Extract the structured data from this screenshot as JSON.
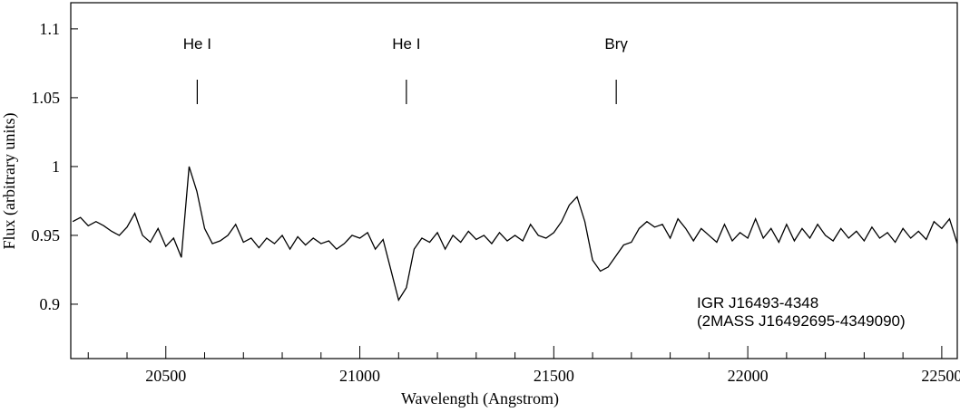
{
  "chart_data": {
    "type": "line",
    "x_label": "Wavelength (Angstrom)",
    "y_label": "Flux (arbitrary units)",
    "color": "#000000",
    "xlim": [
      20255,
      22540
    ],
    "ylim": [
      0.8605,
      1.119
    ],
    "xticks": [
      20500,
      21000,
      21500,
      22000,
      22500
    ],
    "xminorticks": [
      20300,
      20400,
      20600,
      20700,
      20800,
      20900,
      21100,
      21200,
      21300,
      21400,
      21600,
      21700,
      21800,
      21900,
      22100,
      22200,
      22300,
      22400
    ],
    "yticks": [
      0.9,
      0.95,
      1,
      1.05,
      1.1
    ],
    "annotations": [
      {
        "text": "He I",
        "x": 20581
      },
      {
        "text": "He I",
        "x": 21120
      },
      {
        "text": "Brγ",
        "x": 21661
      }
    ],
    "object_label": [
      "IGR J16493-4348",
      "(2MASS J16492695-4349090)"
    ],
    "x": [
      20260,
      20280,
      20300,
      20320,
      20340,
      20360,
      20380,
      20400,
      20420,
      20440,
      20460,
      20480,
      20500,
      20520,
      20540,
      20560,
      20580,
      20600,
      20620,
      20640,
      20660,
      20680,
      20700,
      20720,
      20740,
      20760,
      20780,
      20800,
      20820,
      20840,
      20860,
      20880,
      20900,
      20920,
      20940,
      20960,
      20980,
      21000,
      21020,
      21040,
      21060,
      21080,
      21100,
      21120,
      21140,
      21160,
      21180,
      21200,
      21220,
      21240,
      21260,
      21280,
      21300,
      21320,
      21340,
      21360,
      21380,
      21400,
      21420,
      21440,
      21460,
      21480,
      21500,
      21520,
      21540,
      21560,
      21580,
      21600,
      21620,
      21640,
      21660,
      21680,
      21700,
      21720,
      21740,
      21760,
      21780,
      21800,
      21820,
      21840,
      21860,
      21880,
      21900,
      21920,
      21940,
      21960,
      21980,
      22000,
      22020,
      22040,
      22060,
      22080,
      22100,
      22120,
      22140,
      22160,
      22180,
      22200,
      22220,
      22240,
      22260,
      22280,
      22300,
      22320,
      22340,
      22360,
      22380,
      22400,
      22420,
      22440,
      22460,
      22480,
      22500,
      22520,
      22540
    ],
    "values": [
      0.96,
      0.963,
      0.957,
      0.96,
      0.957,
      0.953,
      0.95,
      0.956,
      0.966,
      0.95,
      0.945,
      0.955,
      0.942,
      0.948,
      0.934,
      1.0,
      0.982,
      0.955,
      0.944,
      0.946,
      0.95,
      0.958,
      0.945,
      0.948,
      0.941,
      0.948,
      0.944,
      0.95,
      0.94,
      0.949,
      0.943,
      0.948,
      0.944,
      0.946,
      0.94,
      0.944,
      0.95,
      0.948,
      0.952,
      0.94,
      0.947,
      0.925,
      0.903,
      0.912,
      0.94,
      0.948,
      0.945,
      0.952,
      0.94,
      0.95,
      0.945,
      0.953,
      0.947,
      0.95,
      0.944,
      0.952,
      0.946,
      0.95,
      0.946,
      0.958,
      0.95,
      0.948,
      0.952,
      0.96,
      0.972,
      0.978,
      0.96,
      0.932,
      0.924,
      0.927,
      0.935,
      0.943,
      0.945,
      0.955,
      0.96,
      0.956,
      0.958,
      0.948,
      0.962,
      0.955,
      0.946,
      0.955,
      0.95,
      0.945,
      0.958,
      0.946,
      0.952,
      0.948,
      0.962,
      0.948,
      0.955,
      0.945,
      0.958,
      0.946,
      0.955,
      0.948,
      0.958,
      0.95,
      0.946,
      0.955,
      0.948,
      0.953,
      0.946,
      0.956,
      0.948,
      0.952,
      0.945,
      0.955,
      0.948,
      0.953,
      0.947,
      0.96,
      0.955,
      0.962,
      0.944
    ]
  }
}
